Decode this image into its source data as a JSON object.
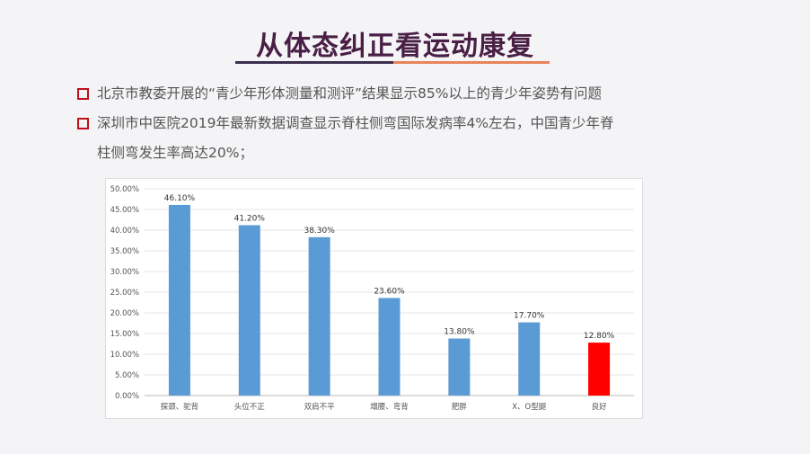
{
  "title": "从体态纠正看运动康复",
  "bullets": [
    {
      "line1": "北京市教委开展的“青少年形体测量和测评”结果显示85%以上的青少年姿势有问题"
    },
    {
      "line1": "深圳市中医院2019年最新数据调查显示脊柱侧弯国际发病率4%左右，中国青少年脊",
      "line2": "柱侧弯发生率高达20%；"
    }
  ],
  "colors": {
    "bar": "#5b9bd5",
    "highlight": "#ff0000",
    "bullet": "#c0101a"
  },
  "chart_data": {
    "type": "bar",
    "categories": [
      "探颈、驼背",
      "头位不正",
      "双肩不平",
      "塌腰、弯背",
      "肥胖",
      "X、O型腿",
      "良好"
    ],
    "values": [
      46.1,
      41.2,
      38.3,
      23.6,
      13.8,
      17.7,
      12.8
    ],
    "data_labels": [
      "46.10%",
      "41.20%",
      "38.30%",
      "23.60%",
      "13.80%",
      "17.70%",
      "12.80%"
    ],
    "bar_colors": [
      "#5b9bd5",
      "#5b9bd5",
      "#5b9bd5",
      "#5b9bd5",
      "#5b9bd5",
      "#5b9bd5",
      "#ff0000"
    ],
    "yticks": [
      "0.00%",
      "5.00%",
      "10.00%",
      "15.00%",
      "20.00%",
      "25.00%",
      "30.00%",
      "35.00%",
      "40.00%",
      "45.00%",
      "50.00%"
    ],
    "ylim": [
      0,
      50
    ],
    "grid": true,
    "title": "",
    "xlabel": "",
    "ylabel": ""
  }
}
